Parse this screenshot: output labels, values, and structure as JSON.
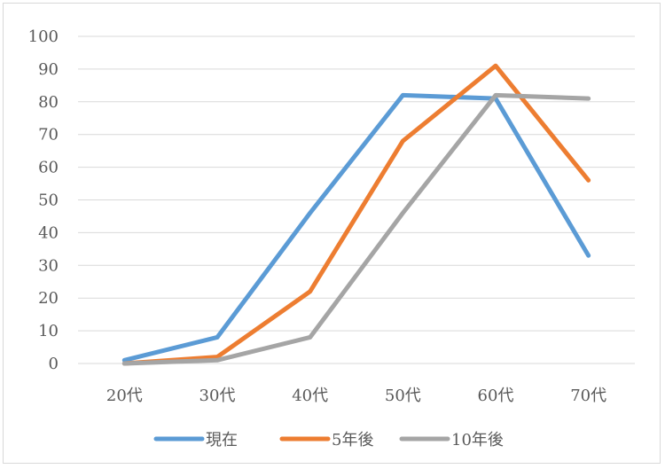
{
  "chart_data": {
    "type": "line",
    "title": "",
    "xlabel": "",
    "ylabel": "",
    "categories": [
      "20代",
      "30代",
      "40代",
      "50代",
      "60代",
      "70代"
    ],
    "ylim": [
      0,
      100
    ],
    "yticks": [
      "0",
      "10",
      "20",
      "30",
      "40",
      "50",
      "60",
      "70",
      "80",
      "90",
      "100"
    ],
    "grid": true,
    "legend_position": "bottom",
    "series": [
      {
        "name": "現在",
        "color": "#5b9bd5",
        "values": [
          1,
          8,
          46,
          82,
          81,
          33
        ]
      },
      {
        "name": "5年後",
        "color": "#ed7d31",
        "values": [
          0,
          2,
          22,
          68,
          91,
          56
        ]
      },
      {
        "name": "10年後",
        "color": "#a5a5a5",
        "values": [
          0,
          1,
          8,
          46,
          82,
          81
        ]
      }
    ]
  }
}
